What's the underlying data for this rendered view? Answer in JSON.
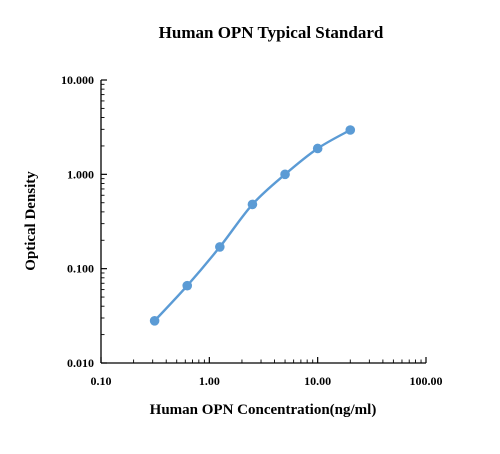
{
  "chart_data": {
    "type": "line",
    "title": "Human OPN Typical Standard",
    "xlabel": "Human OPN Concentration(ng/ml)",
    "ylabel": "Optical Density",
    "x_scale": "log",
    "y_scale": "log",
    "xlim": [
      0.1,
      100
    ],
    "ylim": [
      0.01,
      10
    ],
    "x_ticks": [
      "0.10",
      "1.00",
      "10.00",
      "100.00"
    ],
    "y_ticks": [
      "0.010",
      "0.100",
      "1.000",
      "10.000"
    ],
    "grid": false,
    "series": [
      {
        "color": "#5b9bd5",
        "x": [
          0.3125,
          0.625,
          1.25,
          2.5,
          5,
          10,
          20
        ],
        "y": [
          0.028,
          0.066,
          0.17,
          0.48,
          1.0,
          1.88,
          2.95
        ]
      }
    ]
  }
}
